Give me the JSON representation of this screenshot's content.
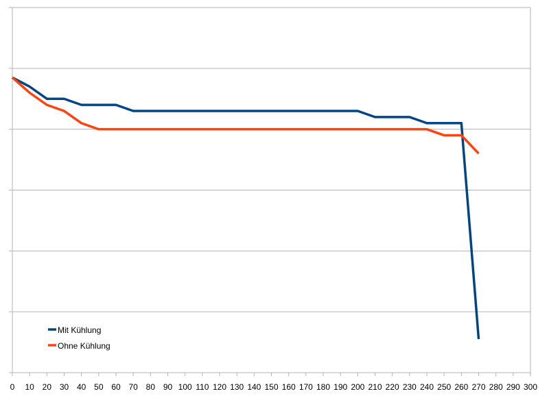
{
  "chart_data": {
    "type": "line",
    "title": "",
    "xlabel": "",
    "ylabel": "",
    "xlim": [
      0,
      300
    ],
    "ylim": [
      0,
      6
    ],
    "x_ticks": [
      "0",
      "10",
      "20",
      "30",
      "40",
      "50",
      "60",
      "70",
      "80",
      "90",
      "100",
      "110",
      "120",
      "130",
      "140",
      "150",
      "160",
      "170",
      "180",
      "190",
      "200",
      "210",
      "220",
      "230",
      "240",
      "250",
      "260",
      "270",
      "280",
      "290",
      "300"
    ],
    "y_tick_labels_visible": false,
    "grid": "horizontal",
    "legend_position": "bottom-left",
    "series": [
      {
        "name": "Mit Kühlung",
        "color": "#004586",
        "points": [
          [
            0,
            4.85
          ],
          [
            10,
            4.7
          ],
          [
            20,
            4.5
          ],
          [
            30,
            4.5
          ],
          [
            40,
            4.4
          ],
          [
            50,
            4.4
          ],
          [
            60,
            4.4
          ],
          [
            70,
            4.3
          ],
          [
            80,
            4.3
          ],
          [
            90,
            4.3
          ],
          [
            100,
            4.3
          ],
          [
            110,
            4.3
          ],
          [
            120,
            4.3
          ],
          [
            130,
            4.3
          ],
          [
            140,
            4.3
          ],
          [
            150,
            4.3
          ],
          [
            160,
            4.3
          ],
          [
            170,
            4.3
          ],
          [
            180,
            4.3
          ],
          [
            190,
            4.3
          ],
          [
            200,
            4.3
          ],
          [
            210,
            4.2
          ],
          [
            220,
            4.2
          ],
          [
            230,
            4.2
          ],
          [
            240,
            4.1
          ],
          [
            250,
            4.1
          ],
          [
            260,
            4.1
          ],
          [
            270,
            0.55
          ]
        ]
      },
      {
        "name": "Ohne Kühlung",
        "color": "#ff420e",
        "points": [
          [
            0,
            4.85
          ],
          [
            10,
            4.6
          ],
          [
            20,
            4.4
          ],
          [
            30,
            4.3
          ],
          [
            40,
            4.1
          ],
          [
            50,
            4.0
          ],
          [
            60,
            4.0
          ],
          [
            70,
            4.0
          ],
          [
            80,
            4.0
          ],
          [
            90,
            4.0
          ],
          [
            100,
            4.0
          ],
          [
            110,
            4.0
          ],
          [
            120,
            4.0
          ],
          [
            130,
            4.0
          ],
          [
            140,
            4.0
          ],
          [
            150,
            4.0
          ],
          [
            160,
            4.0
          ],
          [
            170,
            4.0
          ],
          [
            180,
            4.0
          ],
          [
            190,
            4.0
          ],
          [
            200,
            4.0
          ],
          [
            210,
            4.0
          ],
          [
            220,
            4.0
          ],
          [
            230,
            4.0
          ],
          [
            240,
            4.0
          ],
          [
            250,
            3.9
          ],
          [
            260,
            3.9
          ],
          [
            270,
            3.6
          ]
        ]
      }
    ]
  }
}
